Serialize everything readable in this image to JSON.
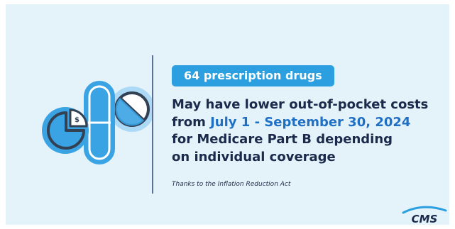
{
  "badge": {
    "text": "64 prescription drugs"
  },
  "headline": {
    "line1": "May have lower out-of-pocket costs",
    "line2_prefix": "from ",
    "line2_dates": "July 1 - September 30, 2024",
    "line3": "for Medicare Part B depending",
    "line4": "on individual coverage"
  },
  "credit": "Thanks to the Inflation Reduction Act",
  "logo": {
    "text": "CMS"
  },
  "icons": {
    "dollar_symbol": "$",
    "illustration": "pills-and-pie-chart-icon",
    "logo_swoosh": "cms-swoosh-icon"
  },
  "colors": {
    "background": "#e4f3fa",
    "badge": "#2b9fe0",
    "accent": "#1f6fc4",
    "text": "#1b2a4a",
    "capsule": "#3aa3e3",
    "halo": "#acd9f5",
    "outline": "#334155"
  }
}
